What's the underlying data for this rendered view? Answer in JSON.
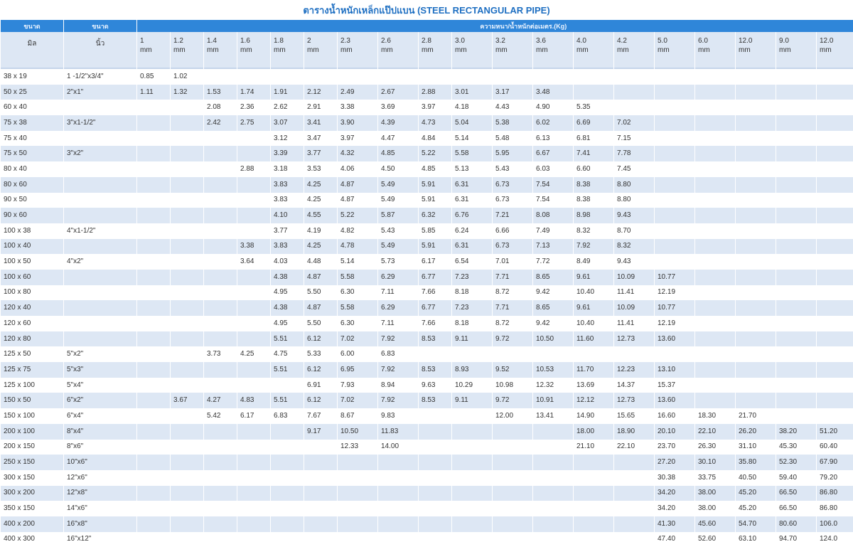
{
  "title": "ตารางน้ำหนักเหล็กแป๊ปแบน  (STEEL RECTANGULAR PIPE)",
  "header": {
    "size_label_1": "ขนาด",
    "size_label_2": "ขนาด",
    "thickness_label": "ความหนา/น้ำหนักต่อเมตร.(Kg)",
    "unit_mm_label": "มิล",
    "unit_inch_label": "นิ้ว",
    "thickness_values": [
      "1",
      "1.2",
      "1.4",
      "1.6",
      "1.8",
      "2",
      "2.3",
      "2.6",
      "2.8",
      "3.0",
      "3.2",
      "3.6",
      "4.0",
      "4.2",
      "5.0",
      "6.0",
      "12.0",
      "9.0",
      "12.0"
    ],
    "thickness_unit": "mm"
  },
  "rows": [
    [
      "38 x 19",
      "1 -1/2\"x3/4\"",
      "0.85",
      "1.02",
      "",
      "",
      "",
      "",
      "",
      "",
      "",
      "",
      "",
      "",
      "",
      "",
      "",
      "",
      "",
      "",
      ""
    ],
    [
      "50 x 25",
      "2\"x1\"",
      "1.11",
      "1.32",
      "1.53",
      "1.74",
      "1.91",
      "2.12",
      "2.49",
      "2.67",
      "2.88",
      "3.01",
      "3.17",
      "3.48",
      "",
      "",
      "",
      "",
      "",
      "",
      ""
    ],
    [
      "60 x 40",
      "",
      "",
      "",
      "2.08",
      "2.36",
      "2.62",
      "2.91",
      "3.38",
      "3.69",
      "3.97",
      "4.18",
      "4.43",
      "4.90",
      "5.35",
      "",
      "",
      "",
      "",
      "",
      ""
    ],
    [
      "75 x 38",
      "3\"x1-1/2\"",
      "",
      "",
      "2.42",
      "2.75",
      "3.07",
      "3.41",
      "3.90",
      "4.39",
      "4.73",
      "5.04",
      "5.38",
      "6.02",
      "6.69",
      "7.02",
      "",
      "",
      "",
      "",
      ""
    ],
    [
      "75 x 40",
      "",
      "",
      "",
      "",
      "",
      "3.12",
      "3.47",
      "3.97",
      "4.47",
      "4.84",
      "5.14",
      "5.48",
      "6.13",
      "6.81",
      "7.15",
      "",
      "",
      "",
      "",
      ""
    ],
    [
      "75 x 50",
      "3\"x2\"",
      "",
      "",
      "",
      "",
      "3.39",
      "3.77",
      "4.32",
      "4.85",
      "5.22",
      "5.58",
      "5.95",
      "6.67",
      "7.41",
      "7.78",
      "",
      "",
      "",
      "",
      ""
    ],
    [
      "80 x 40",
      "",
      "",
      "",
      "",
      "2.88",
      "3.18",
      "3.53",
      "4.06",
      "4.50",
      "4.85",
      "5.13",
      "5.43",
      "6.03",
      "6.60",
      "7.45",
      "",
      "",
      "",
      "",
      ""
    ],
    [
      "80 x 60",
      "",
      "",
      "",
      "",
      "",
      "3.83",
      "4.25",
      "4.87",
      "5.49",
      "5.91",
      "6.31",
      "6.73",
      "7.54",
      "8.38",
      "8.80",
      "",
      "",
      "",
      "",
      ""
    ],
    [
      "90 x 50",
      "",
      "",
      "",
      "",
      "",
      "3.83",
      "4.25",
      "4.87",
      "5.49",
      "5.91",
      "6.31",
      "6.73",
      "7.54",
      "8.38",
      "8.80",
      "",
      "",
      "",
      "",
      ""
    ],
    [
      "90 x 60",
      "",
      "",
      "",
      "",
      "",
      "4.10",
      "4.55",
      "5.22",
      "5.87",
      "6.32",
      "6.76",
      "7.21",
      "8.08",
      "8.98",
      "9.43",
      "",
      "",
      "",
      "",
      ""
    ],
    [
      "100 x 38",
      "4\"x1-1/2\"",
      "",
      "",
      "",
      "",
      "3.77",
      "4.19",
      "4.82",
      "5.43",
      "5.85",
      "6.24",
      "6.66",
      "7.49",
      "8.32",
      "8.70",
      "",
      "",
      "",
      "",
      ""
    ],
    [
      "100 x 40",
      "",
      "",
      "",
      "",
      "3.38",
      "3.83",
      "4.25",
      "4.78",
      "5.49",
      "5.91",
      "6.31",
      "6.73",
      "7.13",
      "7.92",
      "8.32",
      "",
      "",
      "",
      "",
      ""
    ],
    [
      "100 x 50",
      "4\"x2\"",
      "",
      "",
      "",
      "3.64",
      "4.03",
      "4.48",
      "5.14",
      "5.73",
      "6.17",
      "6.54",
      "7.01",
      "7.72",
      "8.49",
      "9.43",
      "",
      "",
      "",
      "",
      ""
    ],
    [
      "100 x 60",
      "",
      "",
      "",
      "",
      "",
      "4.38",
      "4.87",
      "5.58",
      "6.29",
      "6.77",
      "7.23",
      "7.71",
      "8.65",
      "9.61",
      "10.09",
      "10.77",
      "",
      "",
      "",
      ""
    ],
    [
      "100 x 80",
      "",
      "",
      "",
      "",
      "",
      "4.95",
      "5.50",
      "6.30",
      "7.11",
      "7.66",
      "8.18",
      "8.72",
      "9.42",
      "10.40",
      "11.41",
      "12.19",
      "",
      "",
      "",
      ""
    ],
    [
      "120 x 40",
      "",
      "",
      "",
      "",
      "",
      "4.38",
      "4.87",
      "5.58",
      "6.29",
      "6.77",
      "7.23",
      "7.71",
      "8.65",
      "9.61",
      "10.09",
      "10.77",
      "",
      "",
      "",
      ""
    ],
    [
      "120 x 60",
      "",
      "",
      "",
      "",
      "",
      "4.95",
      "5.50",
      "6.30",
      "7.11",
      "7.66",
      "8.18",
      "8.72",
      "9.42",
      "10.40",
      "11.41",
      "12.19",
      "",
      "",
      "",
      ""
    ],
    [
      "120 x 80",
      "",
      "",
      "",
      "",
      "",
      "5.51",
      "6.12",
      "7.02",
      "7.92",
      "8.53",
      "9.11",
      "9.72",
      "10.50",
      "11.60",
      "12.73",
      "13.60",
      "",
      "",
      "",
      ""
    ],
    [
      "125 x 50",
      "5\"x2\"",
      "",
      "",
      "3.73",
      "4.25",
      "4.75",
      "5.33",
      "6.00",
      "6.83",
      "",
      "",
      "",
      "",
      "",
      "",
      "",
      "",
      "",
      "",
      ""
    ],
    [
      "125 x 75",
      "5\"x3\"",
      "",
      "",
      "",
      "",
      "5.51",
      "6.12",
      "6.95",
      "7.92",
      "8.53",
      "8.93",
      "9.52",
      "10.53",
      "11.70",
      "12.23",
      "13.10",
      "",
      "",
      "",
      ""
    ],
    [
      "125 x 100",
      "5\"x4\"",
      "",
      "",
      "",
      "",
      "",
      "6.91",
      "7.93",
      "8.94",
      "9.63",
      "10.29",
      "10.98",
      "12.32",
      "13.69",
      "14.37",
      "15.37",
      "",
      "",
      "",
      ""
    ],
    [
      "150 x 50",
      "6\"x2\"",
      "",
      "3.67",
      "4.27",
      "4.83",
      "5.51",
      "6.12",
      "7.02",
      "7.92",
      "8.53",
      "9.11",
      "9.72",
      "10.91",
      "12.12",
      "12.73",
      "13.60",
      "",
      "",
      "",
      ""
    ],
    [
      "150 x 100",
      "6\"x4\"",
      "",
      "",
      "5.42",
      "6.17",
      "6.83",
      "7.67",
      "8.67",
      "9.83",
      "",
      "",
      "12.00",
      "13.41",
      "14.90",
      "15.65",
      "16.60",
      "18.30",
      "21.70",
      "",
      ""
    ],
    [
      "200 x 100",
      "8\"x4\"",
      "",
      "",
      "",
      "",
      "",
      "9.17",
      "10.50",
      "11.83",
      "",
      "",
      "",
      "",
      "18.00",
      "18.90",
      "20.10",
      "22.10",
      "26.20",
      "38.20",
      "51.20"
    ],
    [
      "200 x 150",
      "8\"x6\"",
      "",
      "",
      "",
      "",
      "",
      "",
      "12.33",
      "14.00",
      "",
      "",
      "",
      "",
      "21.10",
      "22.10",
      "23.70",
      "26.30",
      "31.10",
      "45.30",
      "60.40"
    ],
    [
      "250 x 150",
      "10\"x6\"",
      "",
      "",
      "",
      "",
      "",
      "",
      "",
      "",
      "",
      "",
      "",
      "",
      "",
      "",
      "27.20",
      "30.10",
      "35.80",
      "52.30",
      "67.90"
    ],
    [
      "300 x 150",
      "12\"x6\"",
      "",
      "",
      "",
      "",
      "",
      "",
      "",
      "",
      "",
      "",
      "",
      "",
      "",
      "",
      "30.38",
      "33.75",
      "40.50",
      "59.40",
      "79.20"
    ],
    [
      "300 x 200",
      "12\"x8\"",
      "",
      "",
      "",
      "",
      "",
      "",
      "",
      "",
      "",
      "",
      "",
      "",
      "",
      "",
      "34.20",
      "38.00",
      "45.20",
      "66.50",
      "86.80"
    ],
    [
      "350 x 150",
      "14\"x6\"",
      "",
      "",
      "",
      "",
      "",
      "",
      "",
      "",
      "",
      "",
      "",
      "",
      "",
      "",
      "34.20",
      "38.00",
      "45.20",
      "66.50",
      "86.80"
    ],
    [
      "400 x 200",
      "16\"x8\"",
      "",
      "",
      "",
      "",
      "",
      "",
      "",
      "",
      "",
      "",
      "",
      "",
      "",
      "",
      "41.30",
      "45.60",
      "54.70",
      "80.60",
      "106.0"
    ],
    [
      "400 x 300",
      "16\"x12\"",
      "",
      "",
      "",
      "",
      "",
      "",
      "",
      "",
      "",
      "",
      "",
      "",
      "",
      "",
      "47.40",
      "52.60",
      "63.10",
      "94.70",
      "124.0"
    ]
  ]
}
